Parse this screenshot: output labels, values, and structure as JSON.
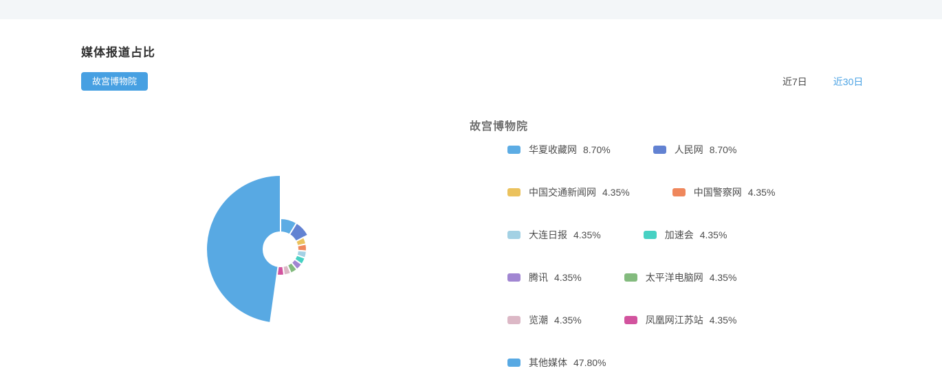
{
  "header": {
    "title": "媒体报道占比"
  },
  "filters": {
    "entity_button": "故宫博物院"
  },
  "time_range": {
    "last7_label": "近7日",
    "last30_label": "近30日",
    "active": "近30日"
  },
  "colors": {
    "accent_blue": "#47a0e2",
    "active_link": "#4aa2e4",
    "topbar_bg": "#f3f6f8",
    "legend_text": "#4d4d4d"
  },
  "chart_data": {
    "type": "pie",
    "variant": "rose-donut",
    "title": "故宫博物院",
    "unit": "%",
    "legend_position": "right",
    "slices": [
      {
        "name": "华夏收藏网",
        "value": 8.7,
        "label": "8.70%",
        "color": "#5cace4"
      },
      {
        "name": "人民网",
        "value": 8.7,
        "label": "8.70%",
        "color": "#6282d2"
      },
      {
        "name": "中国交通新闻网",
        "value": 4.35,
        "label": "4.35%",
        "color": "#ebc25d"
      },
      {
        "name": "中国警察网",
        "value": 4.35,
        "label": "4.35%",
        "color": "#ef875c"
      },
      {
        "name": "大连日报",
        "value": 4.35,
        "label": "4.35%",
        "color": "#a3d1e4"
      },
      {
        "name": "加速会",
        "value": 4.35,
        "label": "4.35%",
        "color": "#47d1c3"
      },
      {
        "name": "腾讯",
        "value": 4.35,
        "label": "4.35%",
        "color": "#a186d2"
      },
      {
        "name": "太平洋电脑网",
        "value": 4.35,
        "label": "4.35%",
        "color": "#83bb7e"
      },
      {
        "name": "览潮",
        "value": 4.35,
        "label": "4.35%",
        "color": "#dcb8c6"
      },
      {
        "name": "凤凰网江苏站",
        "value": 4.35,
        "label": "4.35%",
        "color": "#d2539e"
      },
      {
        "name": "其他媒体",
        "value": 47.8,
        "label": "47.80%",
        "color": "#58a9e3"
      }
    ],
    "legend_rows": [
      [
        0,
        1
      ],
      [
        2,
        3
      ],
      [
        4,
        5
      ],
      [
        6,
        7
      ],
      [
        8,
        9
      ],
      [
        10
      ]
    ]
  }
}
